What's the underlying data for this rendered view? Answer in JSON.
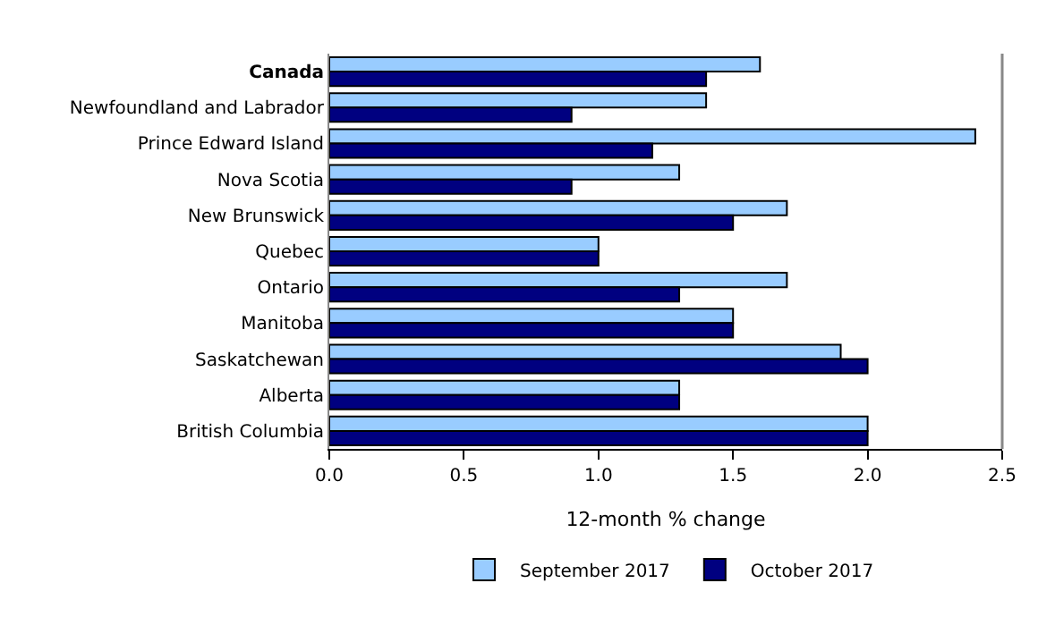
{
  "chart_data": {
    "type": "bar",
    "orientation": "horizontal",
    "categories": [
      "Canada",
      "Newfoundland and Labrador",
      "Prince Edward Island",
      "Nova Scotia",
      "New Brunswick",
      "Quebec",
      "Ontario",
      "Manitoba",
      "Saskatchewan",
      "Alberta",
      "British Columbia"
    ],
    "series": [
      {
        "name": "September 2017",
        "color": "#99ccff",
        "values": [
          1.6,
          1.4,
          2.4,
          1.3,
          1.7,
          1.0,
          1.7,
          1.5,
          1.9,
          1.3,
          2.0
        ]
      },
      {
        "name": "October 2017",
        "color": "#000080",
        "values": [
          1.4,
          0.9,
          1.2,
          0.9,
          1.5,
          1.0,
          1.3,
          1.5,
          2.0,
          1.3,
          2.0
        ]
      }
    ],
    "xlabel": "12-month % change",
    "xlim": [
      0,
      2.5
    ],
    "xticks": [
      {
        "value": 0,
        "label": "0.0"
      },
      {
        "value": 0.5,
        "label": "0.5"
      },
      {
        "value": 1,
        "label": "1.0"
      },
      {
        "value": 1.5,
        "label": "1.5"
      },
      {
        "value": 2,
        "label": "2.0"
      },
      {
        "value": 2.5,
        "label": "2.5"
      }
    ],
    "legend": "bottom"
  }
}
